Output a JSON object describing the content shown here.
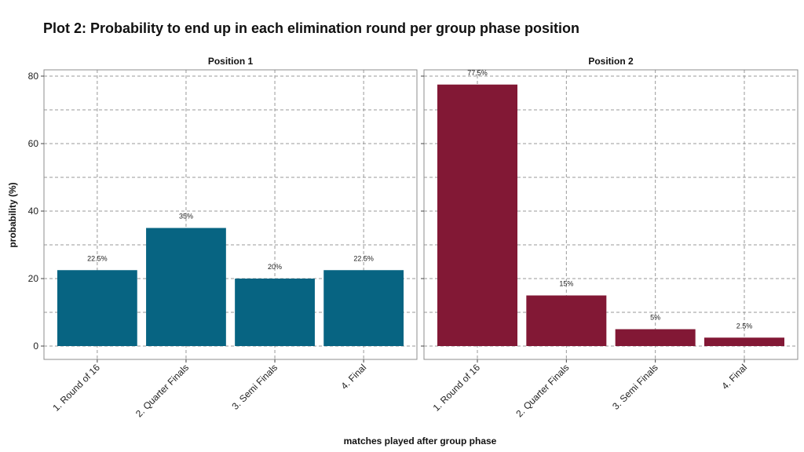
{
  "chart_data": {
    "type": "bar",
    "title": "Plot 2: Probability to end up in each elimination round per group phase position",
    "xlabel": "matches played after group phase",
    "ylabel": "probability (%)",
    "ylim": [
      0,
      81
    ],
    "yticks": [
      0,
      20,
      40,
      60,
      80
    ],
    "grid": true,
    "categories": [
      "1. Round of 16",
      "2. Quarter Finals",
      "3. Semi Finals",
      "4. Final"
    ],
    "facets": [
      {
        "name": "Position 1",
        "color": "#076482",
        "values": [
          22.5,
          35,
          20,
          22.5
        ],
        "labels": [
          "22.5%",
          "35%",
          "20%",
          "22.5%"
        ]
      },
      {
        "name": "Position 2",
        "color": "#821835",
        "values": [
          77.5,
          15,
          5,
          2.5
        ],
        "labels": [
          "77.5%",
          "15%",
          "5%",
          "2.5%"
        ]
      }
    ]
  }
}
